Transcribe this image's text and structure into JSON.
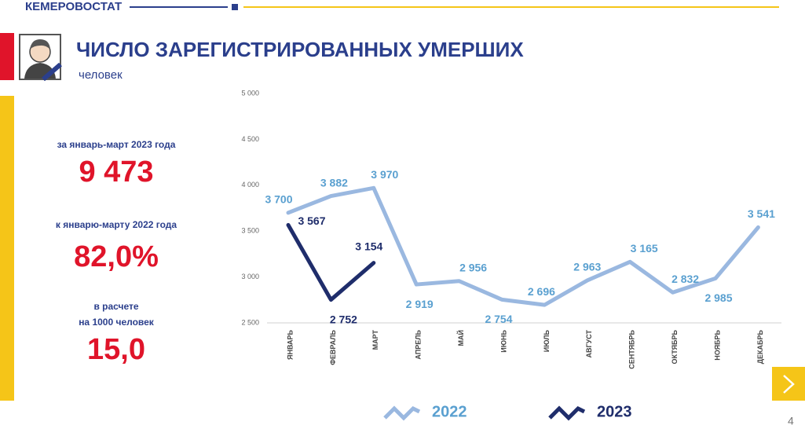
{
  "header": {
    "org": "КЕМЕРОВОСТАТ",
    "title": "ЧИСЛО ЗАРЕГИСТРИРОВАННЫХ УМЕРШИХ",
    "subtitle": "человек",
    "page": "4"
  },
  "stats": {
    "label1": "за январь-март 2023 года",
    "value1": "9 473",
    "label2": "к январю-марту 2022 года",
    "value2": "82,0%",
    "label3_line1": "в расчете",
    "label3_line2": "на 1000 человек",
    "value3": "15,0"
  },
  "chart_data": {
    "type": "line",
    "categories": [
      "ЯНВАРЬ",
      "ФЕВРАЛЬ",
      "МАРТ",
      "АПРЕЛЬ",
      "МАЙ",
      "ИЮНЬ",
      "ИЮЛЬ",
      "АВГУСТ",
      "СЕНТЯБРЬ",
      "ОКТЯБРЬ",
      "НОЯБРЬ",
      "ДЕКАБРЬ"
    ],
    "series": [
      {
        "name": "2022",
        "color": "#9ab8e0",
        "label_color": "#5aa0d0",
        "values": [
          3700,
          3882,
          3970,
          2919,
          2956,
          2754,
          2696,
          2963,
          3165,
          2832,
          2985,
          3541
        ],
        "value_labels": [
          "3 700",
          "3 882",
          "3 970",
          "2 919",
          "2 956",
          "2 754",
          "2 696",
          "2 963",
          "3 165",
          "2 832",
          "2 985",
          "3 541"
        ]
      },
      {
        "name": "2023",
        "color": "#1f2d6b",
        "label_color": "#1f2d6b",
        "values": [
          3567,
          2752,
          3154,
          null,
          null,
          null,
          null,
          null,
          null,
          null,
          null,
          null
        ],
        "value_labels": [
          "3 567",
          "2 752",
          "3 154",
          null,
          null,
          null,
          null,
          null,
          null,
          null,
          null,
          null
        ]
      }
    ],
    "ylim": [
      2500,
      5000
    ],
    "yticks": [
      {
        "value": 2500,
        "label": "2 500"
      },
      {
        "value": 3000,
        "label": "3 000"
      },
      {
        "value": 3500,
        "label": "3 500"
      },
      {
        "value": 4000,
        "label": "4 000"
      },
      {
        "value": 4500,
        "label": "4 500"
      },
      {
        "value": 5000,
        "label": "5 000"
      }
    ],
    "grid": false
  }
}
